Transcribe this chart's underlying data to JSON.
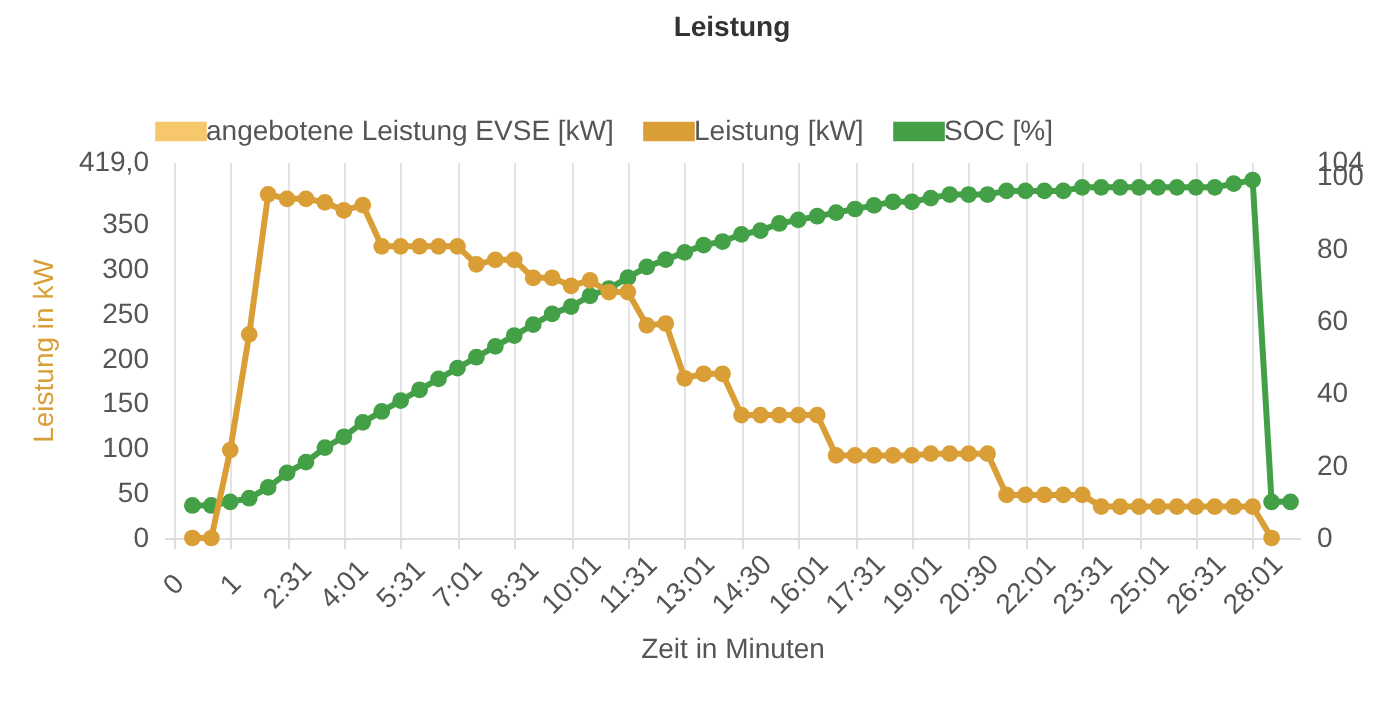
{
  "chart_data": {
    "type": "line",
    "title": "Leistung",
    "xlabel": "Zeit in Minuten",
    "ylabel": "Leistung in kW",
    "categories": [
      "0",
      null,
      null,
      "1",
      null,
      null,
      "2:31",
      null,
      null,
      "4:01",
      null,
      null,
      "5:31",
      null,
      null,
      "7:01",
      null,
      null,
      "8:31",
      null,
      null,
      "10:01",
      null,
      null,
      "11:31",
      null,
      null,
      "13:01",
      null,
      null,
      "14:30",
      null,
      null,
      "16:01",
      null,
      null,
      "17:31",
      null,
      null,
      "19:01",
      null,
      null,
      "20:30",
      null,
      null,
      "22:01",
      null,
      null,
      "23:31",
      null,
      null,
      "25:01",
      null,
      null,
      "26:31",
      null,
      null,
      "28:01",
      null,
      null
    ],
    "series": [
      {
        "name": "angebotene Leistung EVSE [kW]",
        "color": "#f6c86b",
        "values": [
          null,
          null,
          null,
          null,
          null,
          null,
          null,
          null,
          null,
          null,
          null,
          null,
          null,
          null,
          null,
          null,
          null,
          null,
          null,
          null,
          null,
          null,
          null,
          null,
          null,
          null,
          null,
          null,
          null,
          null,
          null,
          null,
          null,
          null,
          null,
          null,
          null,
          null,
          null,
          null,
          null,
          null,
          null,
          null,
          null,
          null,
          null,
          null,
          null,
          null,
          null,
          null,
          null,
          null,
          null,
          null,
          null,
          null,
          null,
          null
        ]
      },
      {
        "name": "Leistung [kW]",
        "color": "#d99e35",
        "values": [
          null,
          0,
          0,
          98,
          227,
          383,
          378,
          378,
          374,
          365,
          371,
          325,
          325,
          325,
          325,
          325,
          305,
          310,
          310,
          290,
          290,
          281,
          287,
          274,
          274,
          237,
          239,
          178,
          183,
          183,
          137,
          137,
          137,
          137,
          137,
          92,
          92,
          92,
          92,
          92,
          94,
          94,
          94,
          94,
          48,
          48,
          48,
          48,
          48,
          35,
          35,
          35,
          35,
          35,
          35,
          35,
          35,
          35,
          0,
          null
        ]
      },
      {
        "name": "SOC [%]",
        "color": "#43a047",
        "axis": "y2",
        "values": [
          null,
          9,
          9,
          10,
          11,
          14,
          18,
          21,
          25,
          28,
          32,
          35,
          38,
          41,
          44,
          47,
          50,
          53,
          56,
          59,
          62,
          64,
          67,
          69,
          72,
          75,
          77,
          79,
          81,
          82,
          84,
          85,
          87,
          88,
          89,
          90,
          91,
          92,
          93,
          93,
          94,
          95,
          95,
          95,
          96,
          96,
          96,
          96,
          97,
          97,
          97,
          97,
          97,
          97,
          97,
          97,
          98,
          99,
          10,
          10
        ]
      }
    ],
    "ylim": [
      0,
      419
    ],
    "yticks": [
      0,
      50,
      100,
      150,
      200,
      250,
      300,
      350,
      {
        "value": 419,
        "label": "419,0"
      }
    ],
    "y2lim": [
      0,
      104
    ],
    "y2ticks": [
      0,
      20,
      40,
      60,
      80,
      100,
      104
    ],
    "grid": "x",
    "legend": "top",
    "marker": "circle",
    "line_style": "solid"
  }
}
